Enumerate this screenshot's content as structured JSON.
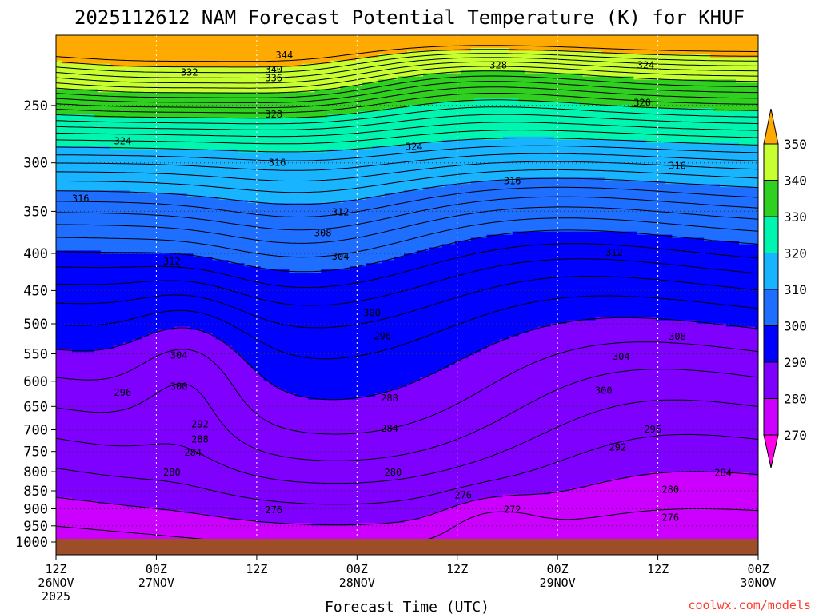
{
  "chart_data": {
    "type": "filled-contour time-height cross section",
    "title": "2025112612 NAM Forecast Potential Temperature (K) for KHUF",
    "xlabel": "Forecast Time (UTC)",
    "ylabel": "",
    "y_scale": "log-pressure",
    "y_unit": "hPa",
    "ylim": [
      1000,
      200
    ],
    "y_ticks": [
      250,
      300,
      350,
      400,
      450,
      500,
      550,
      600,
      650,
      700,
      750,
      800,
      850,
      900,
      950,
      1000
    ],
    "x_start": "2025-11-26 12Z",
    "x_end": "2025-11-30 00Z",
    "x_ticks": [
      {
        "top": "12Z",
        "mid": "26NOV",
        "bot": "2025"
      },
      {
        "top": "00Z",
        "mid": "27NOV",
        "bot": ""
      },
      {
        "top": "12Z",
        "mid": "",
        "bot": ""
      },
      {
        "top": "00Z",
        "mid": "28NOV",
        "bot": ""
      },
      {
        "top": "12Z",
        "mid": "",
        "bot": ""
      },
      {
        "top": "00Z",
        "mid": "29NOV",
        "bot": ""
      },
      {
        "top": "12Z",
        "mid": "",
        "bot": ""
      },
      {
        "top": "00Z",
        "mid": "30NOV",
        "bot": ""
      }
    ],
    "grid": true,
    "colorbar": {
      "levels": [
        270,
        280,
        290,
        300,
        310,
        320,
        330,
        340,
        350
      ],
      "colors": [
        "#ff00e8",
        "#cc00ff",
        "#7f00ff",
        "#0000ff",
        "#1e6eff",
        "#18b4ff",
        "#00f5b0",
        "#30d020",
        "#c8ff30",
        "#ffff00",
        "#ffaa00"
      ],
      "extends": "both"
    },
    "contour_interval_K": 2,
    "contour_labels": [
      {
        "value": 344,
        "t": 0.325,
        "p": 213
      },
      {
        "value": 340,
        "t": 0.31,
        "p": 223
      },
      {
        "value": 336,
        "t": 0.31,
        "p": 229
      },
      {
        "value": 332,
        "t": 0.19,
        "p": 225
      },
      {
        "value": 328,
        "t": 0.31,
        "p": 257
      },
      {
        "value": 328,
        "t": 0.63,
        "p": 220
      },
      {
        "value": 324,
        "t": 0.095,
        "p": 280
      },
      {
        "value": 324,
        "t": 0.51,
        "p": 285
      },
      {
        "value": 324,
        "t": 0.84,
        "p": 220
      },
      {
        "value": 320,
        "t": 0.835,
        "p": 248
      },
      {
        "value": 316,
        "t": 0.315,
        "p": 300
      },
      {
        "value": 316,
        "t": 0.035,
        "p": 336
      },
      {
        "value": 316,
        "t": 0.65,
        "p": 318
      },
      {
        "value": 316,
        "t": 0.885,
        "p": 303
      },
      {
        "value": 312,
        "t": 0.405,
        "p": 351
      },
      {
        "value": 312,
        "t": 0.165,
        "p": 410
      },
      {
        "value": 312,
        "t": 0.795,
        "p": 399
      },
      {
        "value": 308,
        "t": 0.38,
        "p": 375
      },
      {
        "value": 308,
        "t": 0.885,
        "p": 521
      },
      {
        "value": 304,
        "t": 0.405,
        "p": 404
      },
      {
        "value": 304,
        "t": 0.175,
        "p": 553
      },
      {
        "value": 304,
        "t": 0.805,
        "p": 555
      },
      {
        "value": 300,
        "t": 0.45,
        "p": 483
      },
      {
        "value": 300,
        "t": 0.175,
        "p": 610
      },
      {
        "value": 300,
        "t": 0.78,
        "p": 618
      },
      {
        "value": 296,
        "t": 0.465,
        "p": 520
      },
      {
        "value": 296,
        "t": 0.095,
        "p": 622
      },
      {
        "value": 296,
        "t": 0.85,
        "p": 699
      },
      {
        "value": 292,
        "t": 0.205,
        "p": 688
      },
      {
        "value": 292,
        "t": 0.8,
        "p": 740
      },
      {
        "value": 288,
        "t": 0.475,
        "p": 633
      },
      {
        "value": 288,
        "t": 0.205,
        "p": 722
      },
      {
        "value": 284,
        "t": 0.475,
        "p": 697
      },
      {
        "value": 284,
        "t": 0.195,
        "p": 753
      },
      {
        "value": 284,
        "t": 0.95,
        "p": 803
      },
      {
        "value": 280,
        "t": 0.48,
        "p": 802
      },
      {
        "value": 280,
        "t": 0.165,
        "p": 802
      },
      {
        "value": 280,
        "t": 0.875,
        "p": 847
      },
      {
        "value": 276,
        "t": 0.31,
        "p": 904
      },
      {
        "value": 276,
        "t": 0.58,
        "p": 862
      },
      {
        "value": 276,
        "t": 0.875,
        "p": 926
      },
      {
        "value": 272,
        "t": 0.65,
        "p": 902
      }
    ]
  },
  "credit": "coolwx.com/models"
}
